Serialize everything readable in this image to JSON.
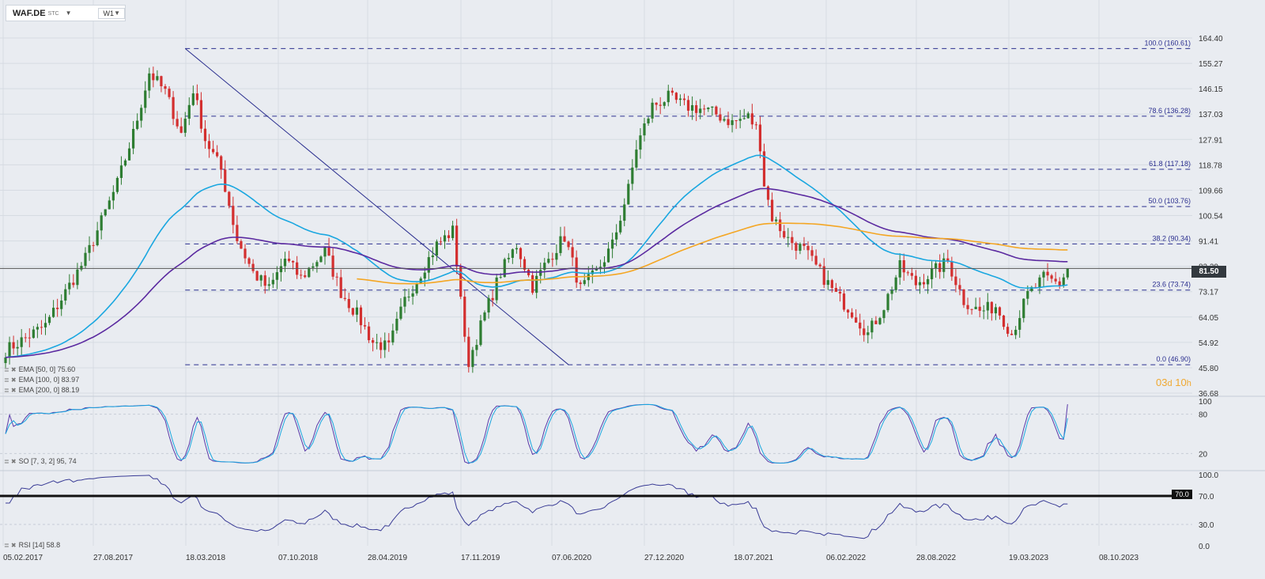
{
  "toolbar": {
    "symbol": "WAF.DE",
    "symbol_sub": "STC",
    "interval": "W1"
  },
  "price_axis": [
    "164.40",
    "155.27",
    "146.15",
    "137.03",
    "127.91",
    "118.78",
    "109.66",
    "100.54",
    "91.41",
    "82.29",
    "73.17",
    "64.05",
    "54.92",
    "45.80",
    "36.68"
  ],
  "current_price": "81.50",
  "countdown": {
    "d": "03",
    "d_unit": "d",
    "h": "10",
    "h_unit": "h"
  },
  "colors": {
    "up": "#2e7d32",
    "down": "#d32f2f",
    "ema50": "#1aa7e0",
    "ema100": "#5b2aa0",
    "ema200": "#f4a623",
    "fib": "#2b2f8f",
    "stoch_k": "#5a3aa8",
    "stoch_d": "#1aa7e0",
    "rsi": "#3a3c96"
  },
  "fib_levels": [
    {
      "label": "100.0 (160.61)",
      "price": 160.61
    },
    {
      "label": "78.6 (136.28)",
      "price": 136.28
    },
    {
      "label": "61.8 (117.18)",
      "price": 117.18
    },
    {
      "label": "50.0 (103.76)",
      "price": 103.76
    },
    {
      "label": "38.2 (90.34)",
      "price": 90.34
    },
    {
      "label": "23.6 (73.74)",
      "price": 73.74
    },
    {
      "label": "0.0 (46.90)",
      "price": 46.9
    }
  ],
  "legend_ema": [
    {
      "icons": "≣ ✖",
      "text": "EMA [50, 0] 75.60"
    },
    {
      "icons": "≣ ✖",
      "text": "EMA [100, 0] 83.97"
    },
    {
      "icons": "≣ ✖",
      "text": "EMA [200, 0] 88.19"
    }
  ],
  "stoch": {
    "legend_icons": "≣ ✖",
    "legend": "SO [7, 3, 2] 95, 74",
    "axis": [
      "100",
      "80",
      "20"
    ]
  },
  "rsi": {
    "legend_icons": "≣ ✖",
    "legend": "RSI [14] 58.8",
    "axis": [
      "100.0",
      "70.0",
      "30.0",
      "0.0"
    ],
    "level_label": "70.0"
  },
  "x_axis": [
    "05.02.2017",
    "27.08.2017",
    "18.03.2018",
    "07.10.2018",
    "28.04.2019",
    "17.11.2019",
    "07.06.2020",
    "27.12.2020",
    "18.07.2021",
    "06.02.2022",
    "28.08.2022",
    "19.03.2023",
    "08.10.2023"
  ],
  "chart_data": {
    "type": "candlestick",
    "title": "WAF.DE",
    "interval": "W1",
    "x_ticks": [
      "05.02.2017",
      "27.08.2017",
      "18.03.2018",
      "07.10.2018",
      "28.04.2019",
      "17.11.2019",
      "07.06.2020",
      "27.12.2020",
      "18.07.2021",
      "06.02.2022",
      "28.08.2022",
      "19.03.2023",
      "08.10.2023"
    ],
    "y_range": [
      36.68,
      164.4
    ],
    "last_close": 81.5,
    "price_path": [
      [
        0,
        52
      ],
      [
        10,
        61
      ],
      [
        20,
        85
      ],
      [
        28,
        112
      ],
      [
        32,
        130
      ],
      [
        36,
        152
      ],
      [
        40,
        145
      ],
      [
        44,
        130
      ],
      [
        47,
        146
      ],
      [
        50,
        128
      ],
      [
        54,
        117
      ],
      [
        58,
        92
      ],
      [
        62,
        80
      ],
      [
        66,
        74
      ],
      [
        70,
        85
      ],
      [
        74,
        78
      ],
      [
        80,
        88
      ],
      [
        84,
        73
      ],
      [
        88,
        65
      ],
      [
        92,
        55
      ],
      [
        96,
        53
      ],
      [
        100,
        70
      ],
      [
        104,
        80
      ],
      [
        108,
        90
      ],
      [
        112,
        95
      ],
      [
        114,
        72
      ],
      [
        115,
        55
      ],
      [
        116,
        48
      ],
      [
        120,
        65
      ],
      [
        124,
        80
      ],
      [
        128,
        90
      ],
      [
        132,
        75
      ],
      [
        136,
        85
      ],
      [
        140,
        93
      ],
      [
        144,
        74
      ],
      [
        148,
        80
      ],
      [
        152,
        90
      ],
      [
        156,
        110
      ],
      [
        158,
        125
      ],
      [
        162,
        140
      ],
      [
        166,
        143
      ],
      [
        170,
        140
      ],
      [
        174,
        139
      ],
      [
        178,
        137
      ],
      [
        182,
        134
      ],
      [
        186,
        136
      ],
      [
        188,
        132
      ],
      [
        189,
        126
      ],
      [
        190,
        112
      ],
      [
        192,
        100
      ],
      [
        196,
        92
      ],
      [
        200,
        88
      ],
      [
        204,
        80
      ],
      [
        208,
        72
      ],
      [
        212,
        66
      ],
      [
        216,
        58
      ],
      [
        220,
        68
      ],
      [
        224,
        82
      ],
      [
        228,
        76
      ],
      [
        232,
        80
      ],
      [
        236,
        84
      ],
      [
        240,
        70
      ],
      [
        244,
        66
      ],
      [
        248,
        68
      ],
      [
        252,
        58
      ],
      [
        256,
        72
      ],
      [
        260,
        78
      ],
      [
        264,
        76
      ],
      [
        266,
        81.5
      ]
    ],
    "ema50_last": 75.6,
    "ema100_last": 83.97,
    "ema200_last": 88.19,
    "fibonacci": {
      "high": 160.61,
      "low": 46.9,
      "levels": [
        100.0,
        78.6,
        61.8,
        50.0,
        38.2,
        23.6,
        0.0
      ]
    },
    "stochastic": {
      "params": "7, 3, 2",
      "k": 95,
      "d": 74
    },
    "rsi": {
      "params": "14",
      "value": 58.8,
      "level": 70.0
    }
  }
}
